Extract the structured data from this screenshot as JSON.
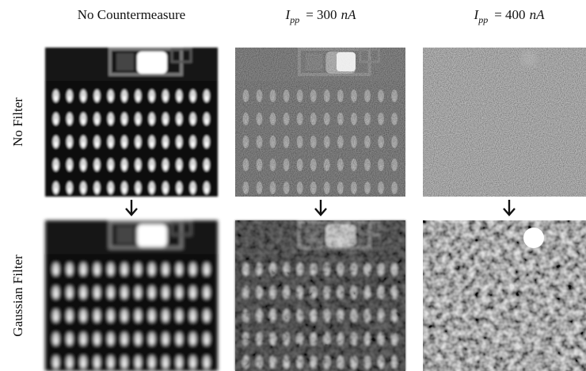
{
  "columns": [
    {
      "title": "No Countermeasure"
    },
    {
      "symbol": "I",
      "subscript": "pp",
      "relation": "= 300",
      "unit": "nA"
    },
    {
      "symbol": "I",
      "subscript": "pp",
      "relation": "= 400",
      "unit": "nA"
    }
  ],
  "rows": [
    {
      "label": "No Filter"
    },
    {
      "label": "Gaussian Filter"
    }
  ]
}
